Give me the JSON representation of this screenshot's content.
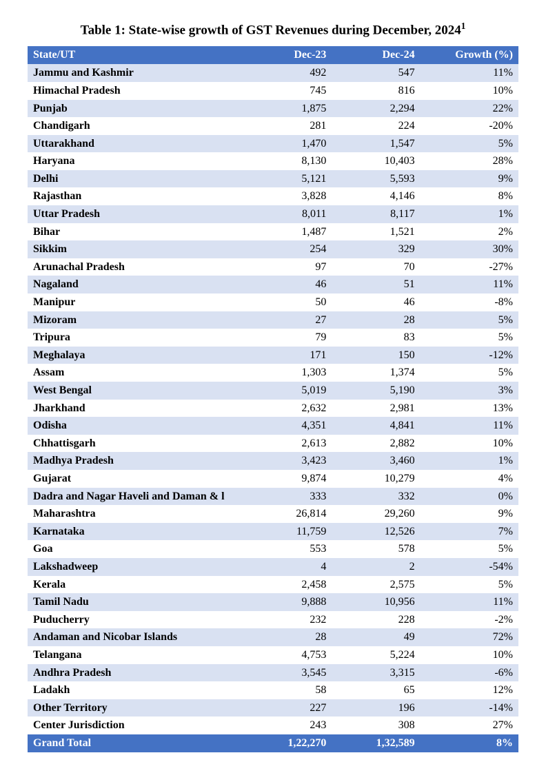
{
  "title": "Table 1: State-wise growth of GST Revenues during December, 2024",
  "title_footnote": "1",
  "columns": [
    "State/UT",
    "Dec-23",
    "Dec-24",
    "Growth (%)"
  ],
  "header_bg": "#4472c4",
  "header_fg": "#ffffff",
  "row_even_bg": "#d9e1f2",
  "row_odd_bg": "#ffffff",
  "text_color": "#000000",
  "font_family": "Times New Roman",
  "font_size_body": 16,
  "font_size_title": 19,
  "rows": [
    {
      "state": "Jammu and Kashmir",
      "dec23": "492",
      "dec24": "547",
      "growth": "11%"
    },
    {
      "state": "Himachal Pradesh",
      "dec23": "745",
      "dec24": "816",
      "growth": "10%"
    },
    {
      "state": "Punjab",
      "dec23": "1,875",
      "dec24": "2,294",
      "growth": "22%"
    },
    {
      "state": "Chandigarh",
      "dec23": "281",
      "dec24": "224",
      "growth": "-20%"
    },
    {
      "state": "Uttarakhand",
      "dec23": "1,470",
      "dec24": "1,547",
      "growth": "5%"
    },
    {
      "state": "Haryana",
      "dec23": "8,130",
      "dec24": "10,403",
      "growth": "28%"
    },
    {
      "state": "Delhi",
      "dec23": "5,121",
      "dec24": "5,593",
      "growth": "9%"
    },
    {
      "state": "Rajasthan",
      "dec23": "3,828",
      "dec24": "4,146",
      "growth": "8%"
    },
    {
      "state": "Uttar Pradesh",
      "dec23": "8,011",
      "dec24": "8,117",
      "growth": "1%"
    },
    {
      "state": "Bihar",
      "dec23": "1,487",
      "dec24": "1,521",
      "growth": "2%"
    },
    {
      "state": "Sikkim",
      "dec23": "254",
      "dec24": "329",
      "growth": "30%"
    },
    {
      "state": "Arunachal Pradesh",
      "dec23": "97",
      "dec24": "70",
      "growth": "-27%"
    },
    {
      "state": "Nagaland",
      "dec23": "46",
      "dec24": "51",
      "growth": "11%"
    },
    {
      "state": "Manipur",
      "dec23": "50",
      "dec24": "46",
      "growth": "-8%"
    },
    {
      "state": "Mizoram",
      "dec23": "27",
      "dec24": "28",
      "growth": "5%"
    },
    {
      "state": "Tripura",
      "dec23": "79",
      "dec24": "83",
      "growth": "5%"
    },
    {
      "state": "Meghalaya",
      "dec23": "171",
      "dec24": "150",
      "growth": "-12%"
    },
    {
      "state": "Assam",
      "dec23": "1,303",
      "dec24": "1,374",
      "growth": "5%"
    },
    {
      "state": "West Bengal",
      "dec23": "5,019",
      "dec24": "5,190",
      "growth": "3%"
    },
    {
      "state": "Jharkhand",
      "dec23": "2,632",
      "dec24": "2,981",
      "growth": "13%"
    },
    {
      "state": "Odisha",
      "dec23": "4,351",
      "dec24": "4,841",
      "growth": "11%"
    },
    {
      "state": "Chhattisgarh",
      "dec23": "2,613",
      "dec24": "2,882",
      "growth": "10%"
    },
    {
      "state": "Madhya Pradesh",
      "dec23": "3,423",
      "dec24": "3,460",
      "growth": "1%"
    },
    {
      "state": "Gujarat",
      "dec23": "9,874",
      "dec24": "10,279",
      "growth": "4%"
    },
    {
      "state": "Dadra and Nagar Haveli and Daman & l",
      "dec23": "333",
      "dec24": "332",
      "growth": "0%"
    },
    {
      "state": "Maharashtra",
      "dec23": "26,814",
      "dec24": "29,260",
      "growth": "9%"
    },
    {
      "state": "Karnataka",
      "dec23": "11,759",
      "dec24": "12,526",
      "growth": "7%"
    },
    {
      "state": "Goa",
      "dec23": "553",
      "dec24": "578",
      "growth": "5%"
    },
    {
      "state": "Lakshadweep",
      "dec23": "4",
      "dec24": "2",
      "growth": "-54%"
    },
    {
      "state": "Kerala",
      "dec23": "2,458",
      "dec24": "2,575",
      "growth": "5%"
    },
    {
      "state": "Tamil Nadu",
      "dec23": "9,888",
      "dec24": "10,956",
      "growth": "11%"
    },
    {
      "state": "Puducherry",
      "dec23": "232",
      "dec24": "228",
      "growth": "-2%"
    },
    {
      "state": "Andaman and Nicobar Islands",
      "dec23": "28",
      "dec24": "49",
      "growth": "72%"
    },
    {
      "state": "Telangana",
      "dec23": "4,753",
      "dec24": "5,224",
      "growth": "10%"
    },
    {
      "state": "Andhra Pradesh",
      "dec23": "3,545",
      "dec24": "3,315",
      "growth": "-6%"
    },
    {
      "state": "Ladakh",
      "dec23": "58",
      "dec24": "65",
      "growth": "12%"
    },
    {
      "state": "Other Territory",
      "dec23": "227",
      "dec24": "196",
      "growth": "-14%"
    },
    {
      "state": "Center Jurisdiction",
      "dec23": "243",
      "dec24": "308",
      "growth": "27%"
    }
  ],
  "total": {
    "label": "Grand Total",
    "dec23": "1,22,270",
    "dec24": "1,32,589",
    "growth": "8%"
  }
}
